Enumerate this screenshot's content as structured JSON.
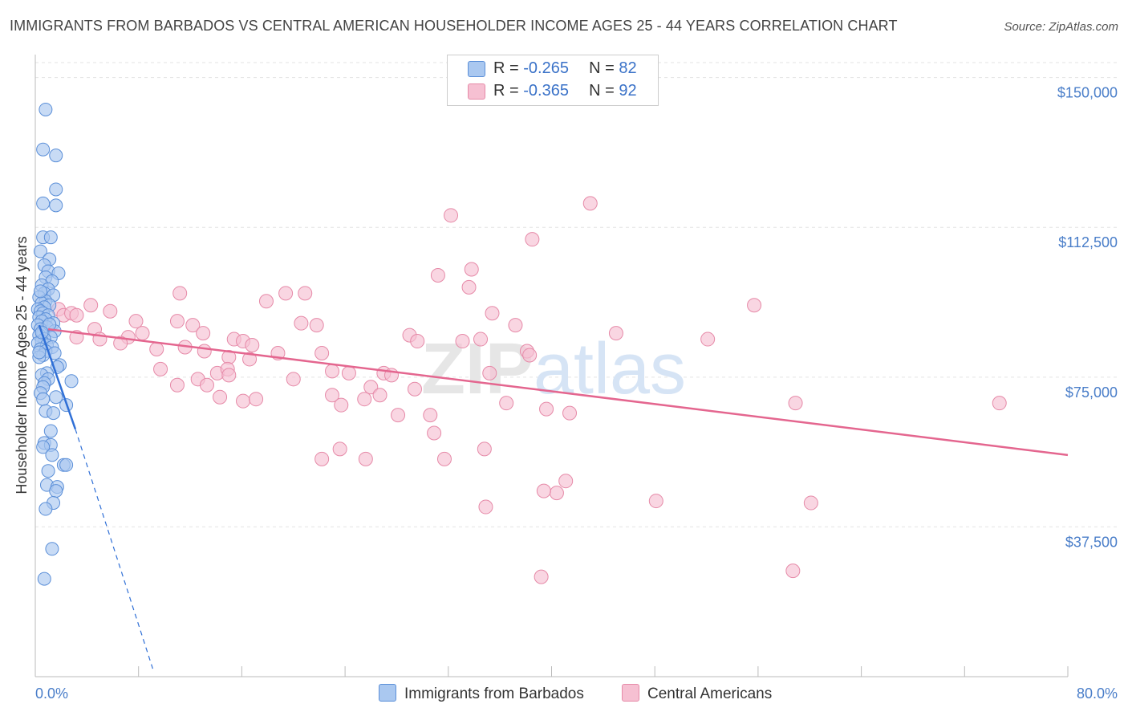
{
  "title": "IMMIGRANTS FROM BARBADOS VS CENTRAL AMERICAN HOUSEHOLDER INCOME AGES 25 - 44 YEARS CORRELATION CHART",
  "source": "Source: ZipAtlas.com",
  "watermark": "ZIPatlas",
  "colors": {
    "blue_fill": "#aac8f0",
    "blue_stroke": "#5b8fd8",
    "blue_line": "#2f6fd6",
    "pink_fill": "#f6c0d2",
    "pink_stroke": "#e68aa8",
    "pink_line": "#e4668f",
    "axis_label": "#4a7ec9"
  },
  "legend": {
    "rows": [
      {
        "r_label": "R = ",
        "r_value": "-0.265",
        "n_label": "N = ",
        "n_value": "82"
      },
      {
        "r_label": "R = ",
        "r_value": "-0.365",
        "n_label": "N = ",
        "n_value": "92"
      }
    ]
  },
  "bottom_legend": {
    "series1": "Immigrants from Barbados",
    "series2": "Central Americans"
  },
  "chart_data": {
    "type": "scatter",
    "title": "IMMIGRANTS FROM BARBADOS VS CENTRAL AMERICAN HOUSEHOLDER INCOME AGES 25 - 44 YEARS CORRELATION CHART",
    "xlabel": "",
    "ylabel": "Householder Income Ages 25 - 44 years",
    "xlim": [
      0,
      80
    ],
    "ylim": [
      0,
      153750
    ],
    "x_tick_labels": [
      "0.0%",
      "80.0%"
    ],
    "y_ticks": [
      37500,
      75000,
      112500,
      150000
    ],
    "y_tick_labels": [
      "$37,500",
      "$75,000",
      "$112,500",
      "$150,000"
    ],
    "grid": true,
    "legend_position": "top-center",
    "series": [
      {
        "name": "Immigrants from Barbados",
        "r": -0.265,
        "n": 82,
        "trend": {
          "x0": 0.3,
          "y0": 88000,
          "x1": 3.1,
          "y1": 62000,
          "dash_to_x": 9.1,
          "dash_to_y": 2000
        },
        "points": [
          [
            0.8,
            142000
          ],
          [
            0.6,
            132000
          ],
          [
            1.6,
            130500
          ],
          [
            1.6,
            122000
          ],
          [
            0.6,
            118500
          ],
          [
            1.6,
            118000
          ],
          [
            0.6,
            110000
          ],
          [
            1.2,
            110000
          ],
          [
            0.4,
            106500
          ],
          [
            1.1,
            104500
          ],
          [
            0.7,
            103000
          ],
          [
            1.0,
            101500
          ],
          [
            1.8,
            101000
          ],
          [
            0.8,
            100000
          ],
          [
            1.3,
            99000
          ],
          [
            0.5,
            98000
          ],
          [
            1.0,
            97000
          ],
          [
            0.7,
            96000
          ],
          [
            1.4,
            95500
          ],
          [
            0.3,
            95000
          ],
          [
            0.8,
            94000
          ],
          [
            0.5,
            93500
          ],
          [
            1.1,
            93000
          ],
          [
            0.7,
            92500
          ],
          [
            0.2,
            92000
          ],
          [
            0.4,
            91500
          ],
          [
            0.6,
            91000
          ],
          [
            1.0,
            90500
          ],
          [
            0.3,
            90000
          ],
          [
            0.8,
            89500
          ],
          [
            0.5,
            89000
          ],
          [
            1.4,
            88500
          ],
          [
            0.2,
            88000
          ],
          [
            0.9,
            87500
          ],
          [
            0.4,
            87000
          ],
          [
            1.5,
            86500
          ],
          [
            0.6,
            86000
          ],
          [
            0.3,
            85500
          ],
          [
            1.2,
            85000
          ],
          [
            0.7,
            84500
          ],
          [
            0.5,
            84000
          ],
          [
            0.2,
            83500
          ],
          [
            0.9,
            83000
          ],
          [
            1.3,
            82500
          ],
          [
            0.4,
            82000
          ],
          [
            0.8,
            81500
          ],
          [
            1.5,
            81000
          ],
          [
            0.6,
            80500
          ],
          [
            0.3,
            80000
          ],
          [
            1.9,
            78000
          ],
          [
            1.7,
            77500
          ],
          [
            0.9,
            76000
          ],
          [
            0.5,
            75500
          ],
          [
            1.0,
            74500
          ],
          [
            2.8,
            74000
          ],
          [
            0.7,
            73500
          ],
          [
            0.6,
            72500
          ],
          [
            0.4,
            71000
          ],
          [
            1.6,
            70000
          ],
          [
            0.6,
            69500
          ],
          [
            2.4,
            68000
          ],
          [
            0.8,
            66500
          ],
          [
            1.4,
            66000
          ],
          [
            1.2,
            61500
          ],
          [
            0.7,
            58500
          ],
          [
            1.2,
            58000
          ],
          [
            0.6,
            57500
          ],
          [
            1.3,
            55500
          ],
          [
            2.2,
            53000
          ],
          [
            2.4,
            53000
          ],
          [
            1.0,
            51500
          ],
          [
            0.9,
            48000
          ],
          [
            1.7,
            47500
          ],
          [
            1.6,
            46500
          ],
          [
            1.4,
            43500
          ],
          [
            0.8,
            42000
          ],
          [
            1.3,
            32000
          ],
          [
            0.7,
            24500
          ],
          [
            0.4,
            96500
          ],
          [
            1.1,
            88200
          ],
          [
            0.5,
            86200
          ],
          [
            0.3,
            81200
          ]
        ]
      },
      {
        "name": "Central Americans",
        "r": -0.365,
        "n": 92,
        "trend": {
          "x0": 1.0,
          "y0": 87000,
          "x1": 80.0,
          "y1": 55500
        },
        "points": [
          [
            43.0,
            118500
          ],
          [
            32.2,
            115500
          ],
          [
            38.5,
            109500
          ],
          [
            31.2,
            100500
          ],
          [
            33.8,
            102000
          ],
          [
            33.6,
            97500
          ],
          [
            11.2,
            96000
          ],
          [
            19.4,
            96000
          ],
          [
            20.9,
            96000
          ],
          [
            17.9,
            94000
          ],
          [
            4.3,
            93000
          ],
          [
            5.8,
            91500
          ],
          [
            35.4,
            91000
          ],
          [
            55.7,
            93000
          ],
          [
            1.8,
            92000
          ],
          [
            2.2,
            90500
          ],
          [
            2.8,
            91000
          ],
          [
            3.2,
            90500
          ],
          [
            7.8,
            89000
          ],
          [
            11.0,
            89000
          ],
          [
            12.2,
            88000
          ],
          [
            20.6,
            88500
          ],
          [
            21.8,
            88000
          ],
          [
            37.2,
            88000
          ],
          [
            4.6,
            87000
          ],
          [
            8.3,
            86000
          ],
          [
            13.0,
            86000
          ],
          [
            29.0,
            85500
          ],
          [
            3.2,
            85000
          ],
          [
            5.0,
            84500
          ],
          [
            7.2,
            85000
          ],
          [
            15.4,
            84500
          ],
          [
            16.1,
            84000
          ],
          [
            52.1,
            84500
          ],
          [
            45.0,
            86000
          ],
          [
            29.6,
            84000
          ],
          [
            33.1,
            84000
          ],
          [
            34.5,
            84500
          ],
          [
            6.6,
            83500
          ],
          [
            11.6,
            82500
          ],
          [
            16.8,
            83000
          ],
          [
            9.4,
            82000
          ],
          [
            13.1,
            81500
          ],
          [
            18.8,
            81000
          ],
          [
            22.2,
            81000
          ],
          [
            15.0,
            80000
          ],
          [
            16.6,
            79500
          ],
          [
            38.1,
            81500
          ],
          [
            38.3,
            80500
          ],
          [
            9.7,
            77000
          ],
          [
            12.6,
            74500
          ],
          [
            14.1,
            76000
          ],
          [
            14.9,
            77000
          ],
          [
            11.0,
            73000
          ],
          [
            13.3,
            73000
          ],
          [
            15.0,
            75500
          ],
          [
            20.0,
            74500
          ],
          [
            23.0,
            76500
          ],
          [
            24.3,
            76000
          ],
          [
            27.0,
            76000
          ],
          [
            27.6,
            75500
          ],
          [
            26.0,
            72500
          ],
          [
            29.4,
            72000
          ],
          [
            14.3,
            70000
          ],
          [
            16.1,
            69000
          ],
          [
            17.1,
            69500
          ],
          [
            23.0,
            70500
          ],
          [
            23.7,
            68000
          ],
          [
            25.5,
            69500
          ],
          [
            26.7,
            70500
          ],
          [
            28.1,
            65500
          ],
          [
            30.6,
            65500
          ],
          [
            36.5,
            68500
          ],
          [
            39.6,
            67000
          ],
          [
            41.4,
            66000
          ],
          [
            58.9,
            68500
          ],
          [
            74.7,
            68500
          ],
          [
            30.9,
            61000
          ],
          [
            23.6,
            57000
          ],
          [
            22.2,
            54500
          ],
          [
            25.6,
            54500
          ],
          [
            31.7,
            54500
          ],
          [
            34.8,
            57000
          ],
          [
            41.1,
            49000
          ],
          [
            40.4,
            46000
          ],
          [
            39.4,
            46500
          ],
          [
            48.1,
            44000
          ],
          [
            34.9,
            42500
          ],
          [
            60.1,
            43500
          ],
          [
            58.7,
            26500
          ],
          [
            39.2,
            25000
          ],
          [
            35.2,
            76000
          ]
        ]
      }
    ]
  }
}
